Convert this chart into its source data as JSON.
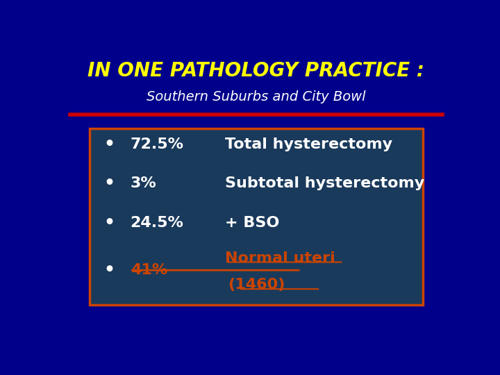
{
  "title": "IN ONE PATHOLOGY PRACTICE :",
  "subtitle": "Southern Suburbs and City Bowl",
  "title_color": "#FFFF00",
  "subtitle_color": "#FFFFFF",
  "bg_color": "#00008B",
  "box_bg_color": "#1a3a5c",
  "box_border_color": "#CC4400",
  "red_line_color": "#CC0000",
  "bullet_color": "#FFFFFF",
  "bullet_items": [
    {
      "percent": "72.5%",
      "desc": "Total hysterectomy",
      "desc2": "",
      "color": "#FFFFFF",
      "underline": false
    },
    {
      "percent": "3%",
      "desc": "Subtotal hysterectomy",
      "desc2": "",
      "color": "#FFFFFF",
      "underline": false
    },
    {
      "percent": "24.5%",
      "desc": "+ BSO",
      "desc2": "",
      "color": "#FFFFFF",
      "underline": false
    },
    {
      "percent": "41%",
      "desc": "Normal uteri",
      "desc2": "(1460)",
      "color": "#CC4400",
      "underline": true
    }
  ]
}
